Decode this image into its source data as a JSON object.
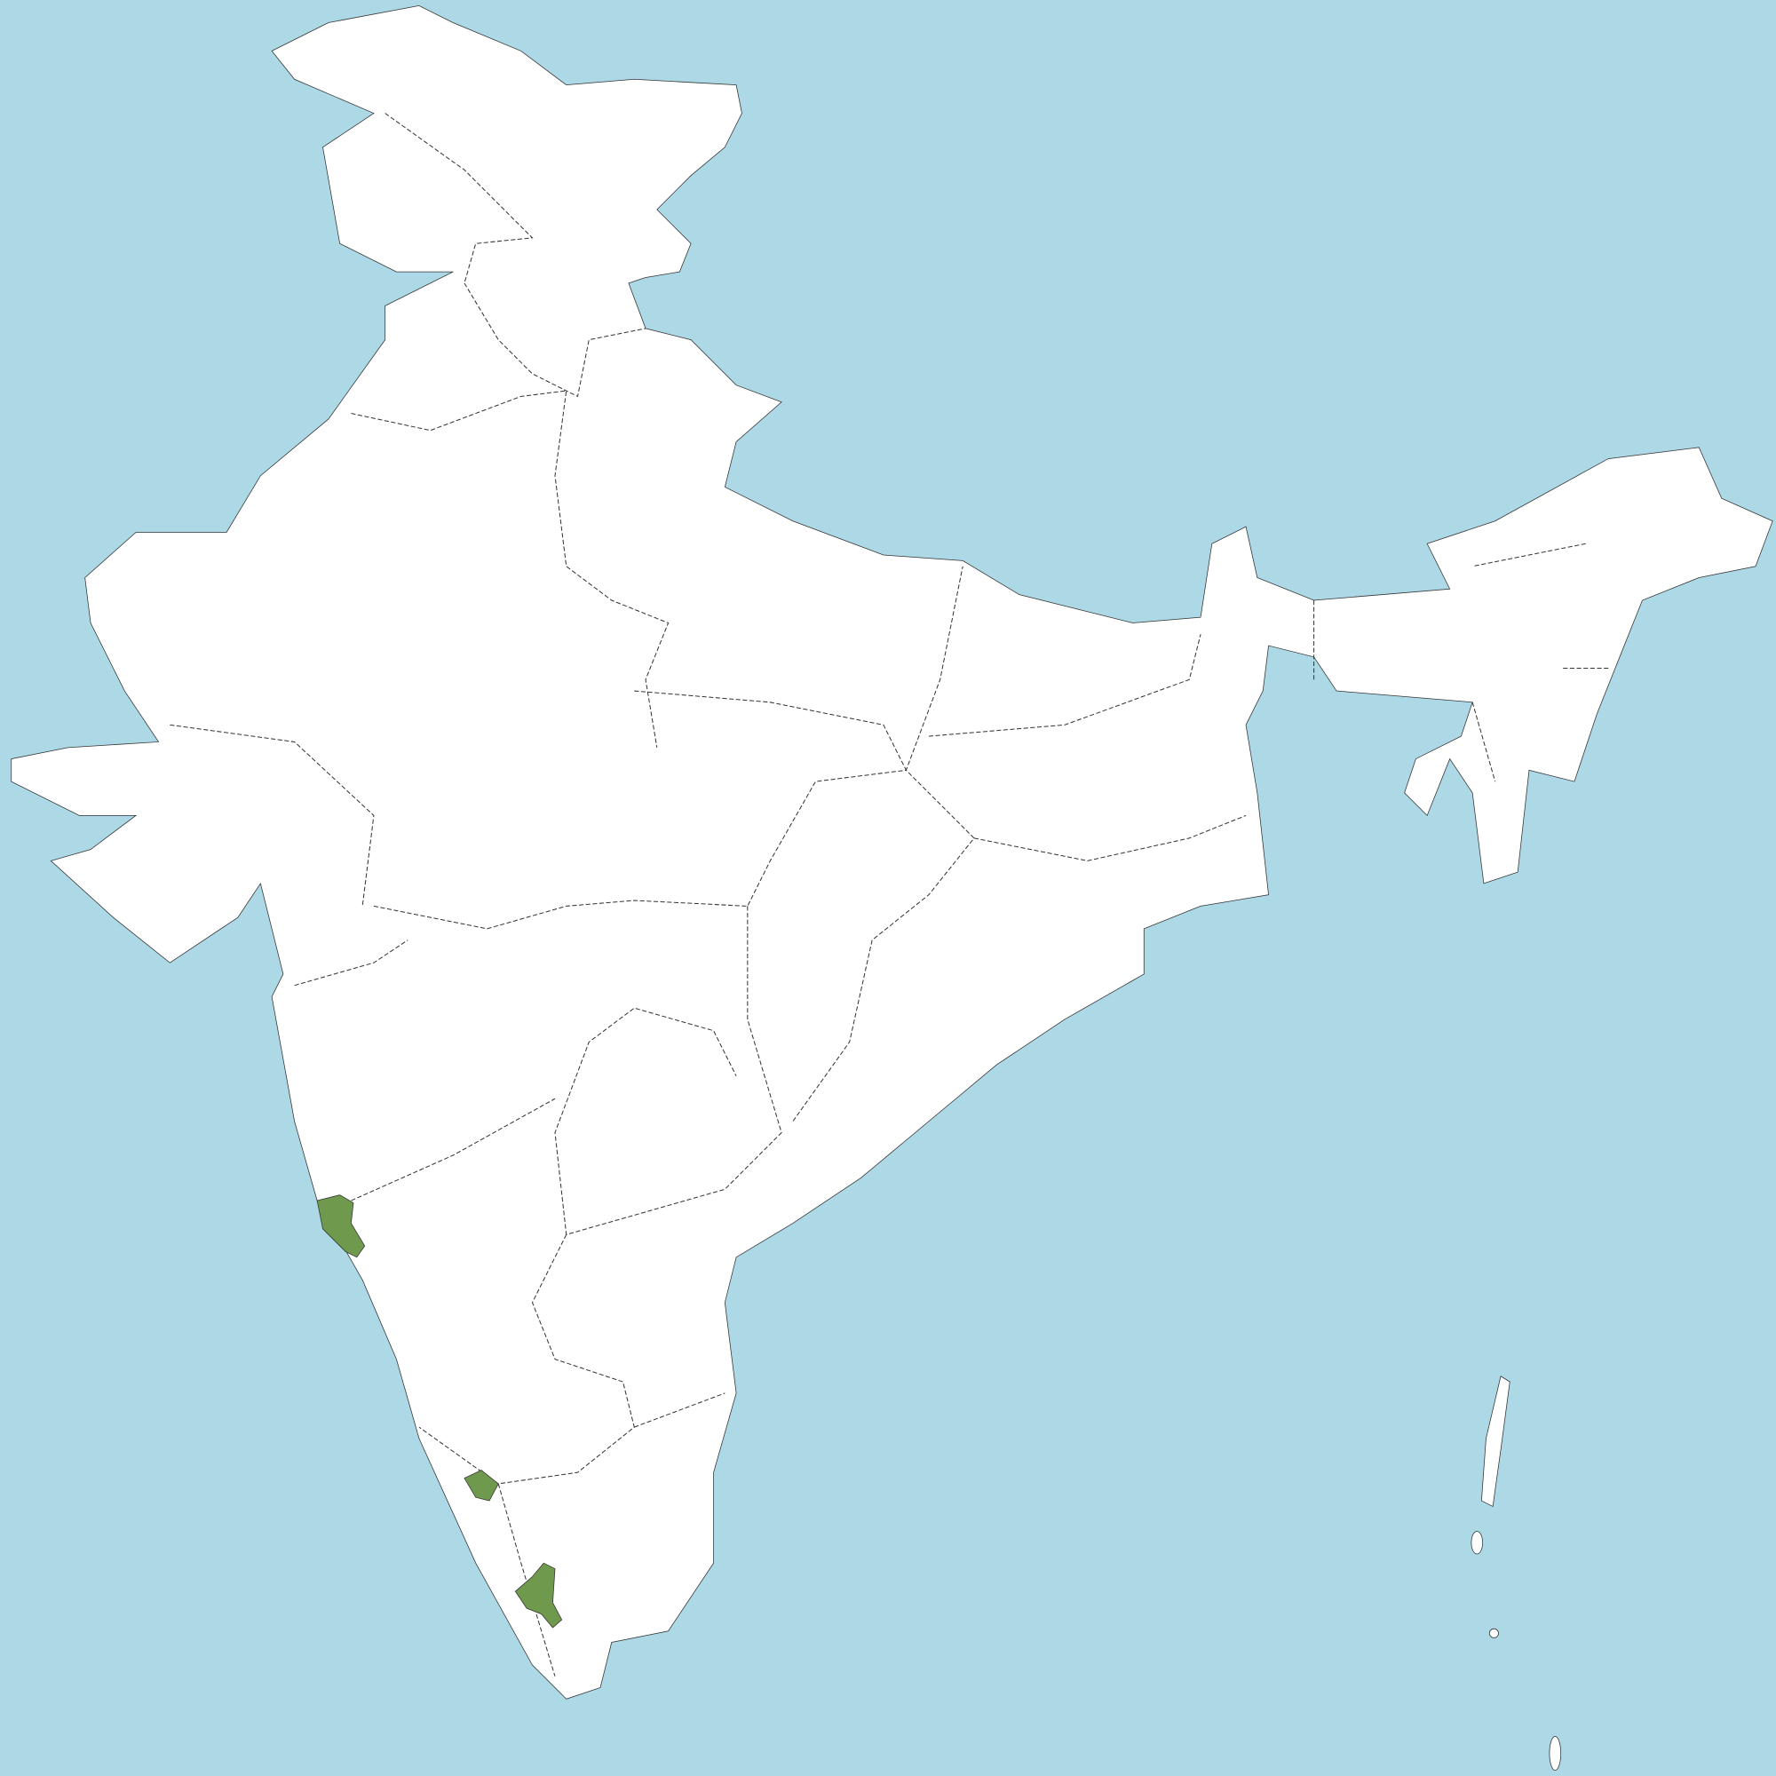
{
  "map": {
    "colors": {
      "water": "#add8e6",
      "land": "#ffffff",
      "border": "#333333",
      "highlight": "#6f9a4e"
    },
    "highlighted_region_count": 3
  }
}
